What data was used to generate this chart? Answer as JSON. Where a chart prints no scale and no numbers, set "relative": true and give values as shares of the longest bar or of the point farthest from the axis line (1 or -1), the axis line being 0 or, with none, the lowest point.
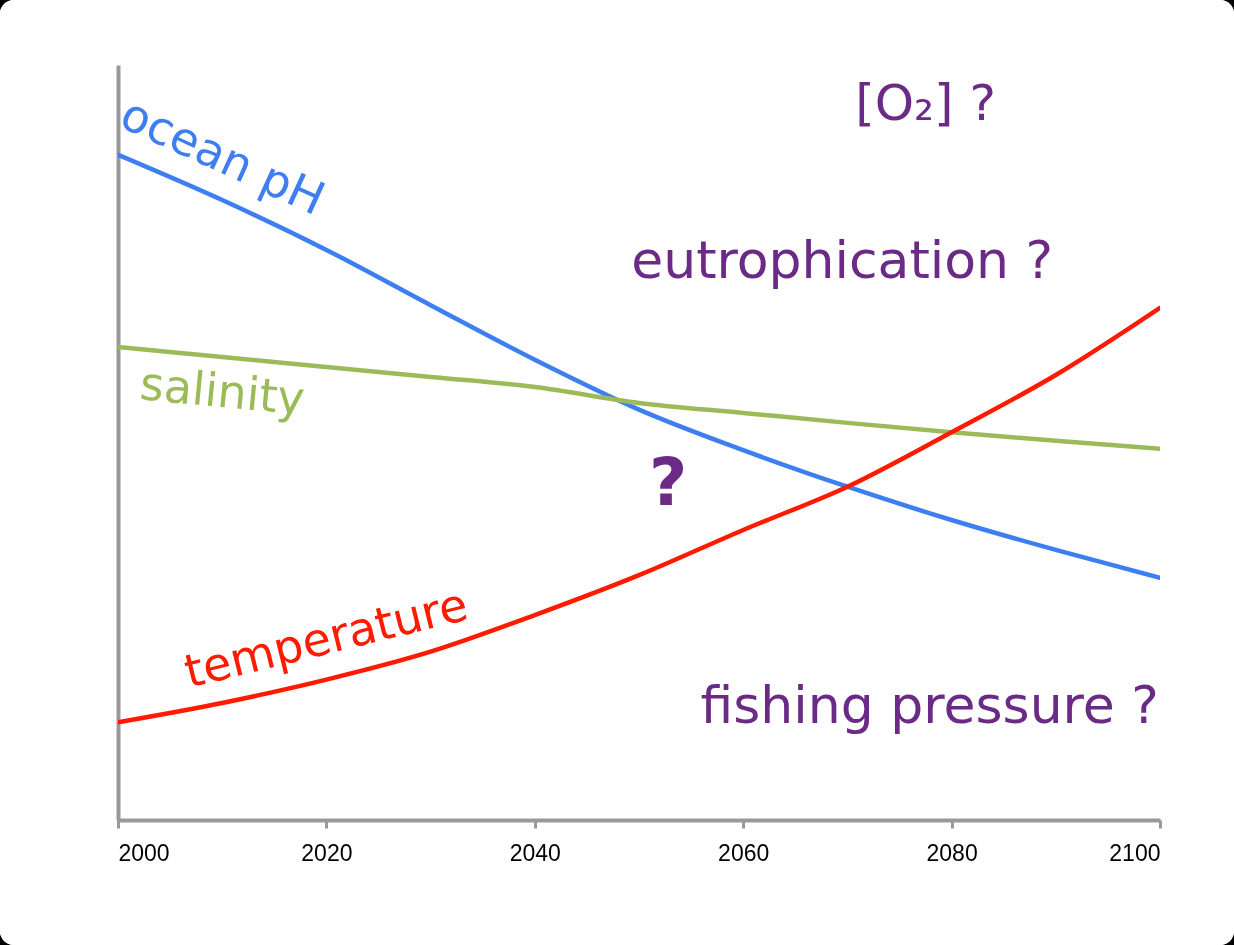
{
  "chart_data": {
    "type": "line",
    "relative": true,
    "x": [
      2000,
      2010,
      2020,
      2030,
      2040,
      2050,
      2060,
      2070,
      2080,
      2090,
      2100
    ],
    "xlim": [
      2000,
      2100
    ],
    "xticks": [
      2000,
      2020,
      2040,
      2060,
      2080,
      2100
    ],
    "grid": false,
    "marker": "none",
    "line_style": "solid",
    "series": [
      {
        "name": "ocean pH",
        "color": "#3d7ff0",
        "values": [
          1.0,
          0.932,
          0.857,
          0.774,
          0.692,
          0.617,
          0.556,
          0.501,
          0.451,
          0.406,
          0.364
        ]
      },
      {
        "name": "salinity",
        "color": "#9bbb59",
        "values": [
          0.711,
          0.696,
          0.681,
          0.666,
          0.651,
          0.627,
          0.612,
          0.597,
          0.583,
          0.57,
          0.558
        ]
      },
      {
        "name": "temperature",
        "color": "#ff1a00",
        "values": [
          0.147,
          0.176,
          0.211,
          0.253,
          0.308,
          0.368,
          0.436,
          0.501,
          0.583,
          0.669,
          0.77
        ]
      }
    ],
    "annotations": [
      "[O₂] ?",
      "eutrophication ?",
      "?",
      "fishing pressure ?"
    ]
  }
}
